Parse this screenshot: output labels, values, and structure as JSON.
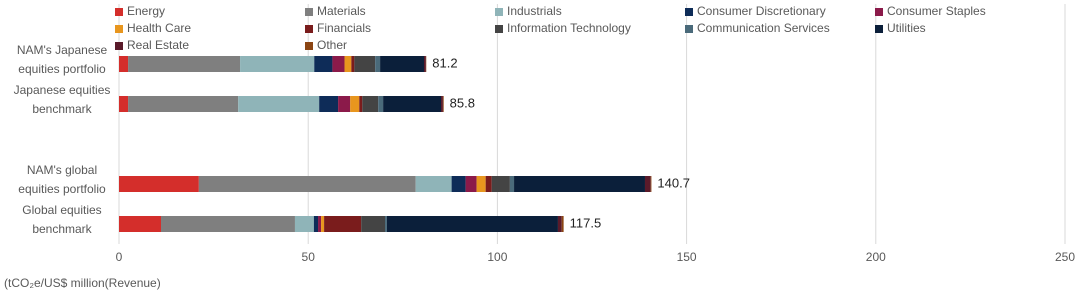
{
  "chart_data": {
    "type": "stacked-bar-horizontal",
    "categories": [
      "NAM's Japanese equities portfolio",
      "Japanese equities benchmark",
      null,
      "NAM's global equities portfolio",
      "Global equities benchmark"
    ],
    "totals": [
      81.2,
      85.8,
      null,
      140.7,
      117.5
    ],
    "series": [
      {
        "name": "Energy",
        "color": "#d42e2b",
        "values": [
          2.4,
          2.4,
          null,
          21.1,
          11.1
        ]
      },
      {
        "name": "Materials",
        "color": "#7f7f7f",
        "values": [
          29.6,
          29.1,
          null,
          57.3,
          35.4
        ]
      },
      {
        "name": "Industrials",
        "color": "#8fb4b8",
        "values": [
          19.6,
          21.4,
          null,
          9.5,
          5.0
        ]
      },
      {
        "name": "Consumer Discretionary",
        "color": "#0e2c58",
        "values": [
          4.8,
          5.0,
          null,
          3.7,
          1.1
        ]
      },
      {
        "name": "Consumer Staples",
        "color": "#8b1a4a",
        "values": [
          3.2,
          3.2,
          null,
          2.9,
          0.8
        ]
      },
      {
        "name": "Health Care",
        "color": "#e8961e",
        "values": [
          1.8,
          2.4,
          null,
          2.4,
          0.8
        ]
      },
      {
        "name": "Financials",
        "color": "#7a1c1c",
        "values": [
          0.8,
          0.8,
          null,
          1.6,
          9.8
        ]
      },
      {
        "name": "Information Technology",
        "color": "#444444",
        "values": [
          5.5,
          4.2,
          null,
          4.8,
          6.3
        ]
      },
      {
        "name": "Communication Services",
        "color": "#4a6a7a",
        "values": [
          1.3,
          1.3,
          null,
          1.1,
          0.5
        ]
      },
      {
        "name": "Utilities",
        "color": "#0b1f3a",
        "values": [
          11.6,
          15.3,
          null,
          34.6,
          45.2
        ]
      },
      {
        "name": "Real Estate",
        "color": "#5a1a2a",
        "values": [
          0.5,
          0.5,
          null,
          1.5,
          1.0
        ]
      },
      {
        "name": "Other",
        "color": "#8b4513",
        "values": [
          0.1,
          0.2,
          null,
          0.2,
          0.5
        ]
      }
    ],
    "xlim": [
      0,
      250
    ],
    "xticks": [
      0,
      50,
      100,
      150,
      200,
      250
    ],
    "grid": true,
    "x_label": "(tCO₂e/US$ million(Revenue)"
  }
}
